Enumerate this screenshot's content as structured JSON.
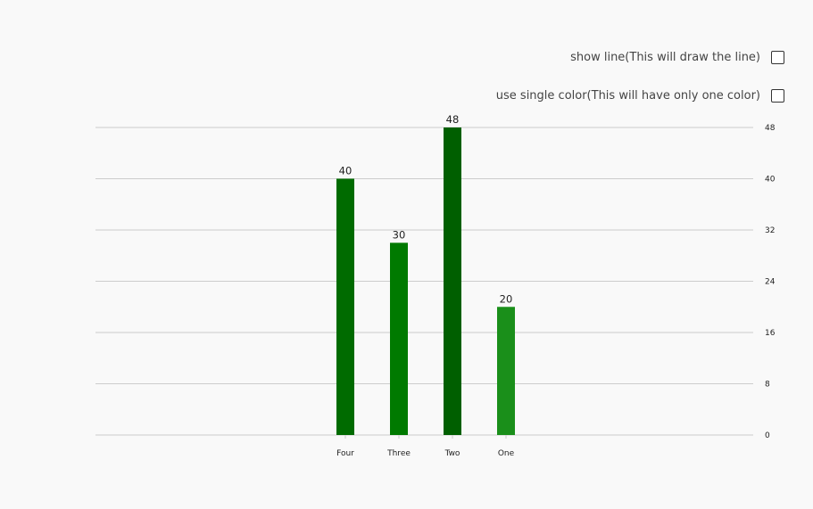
{
  "controls": {
    "show_line": {
      "label": "show line(This will draw the line)",
      "checked": false
    },
    "single_color": {
      "label": "use single color(This will have only one color)",
      "checked": false
    }
  },
  "chart_data": {
    "type": "bar",
    "title": "",
    "xlabel": "",
    "ylabel": "",
    "categories": [
      "Four",
      "Three",
      "Two",
      "One"
    ],
    "values": [
      40,
      30,
      48,
      20
    ],
    "bar_colors": [
      "#006b00",
      "#007a00",
      "#005f00",
      "#1a8f1a"
    ],
    "ylim": [
      0,
      48
    ],
    "yticks": [
      0,
      8,
      16,
      24,
      32,
      40,
      48
    ],
    "y_axis_side": "right",
    "grid": true,
    "grid_color": "#cccccc",
    "show_data_labels": true
  }
}
